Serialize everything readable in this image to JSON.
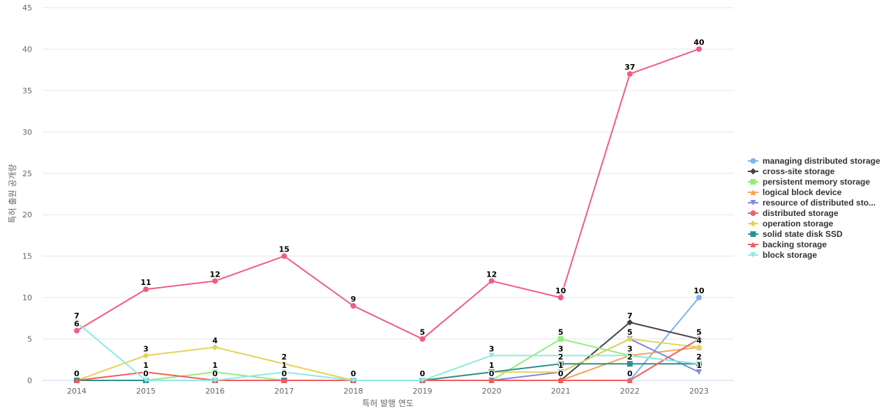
{
  "chart_data": {
    "type": "line",
    "xlabel": "특허 발행 연도",
    "ylabel": "특허 출원 공개량",
    "x": [
      "2014",
      "2015",
      "2016",
      "2017",
      "2018",
      "2019",
      "2020",
      "2021",
      "2022",
      "2023"
    ],
    "ylim": [
      0,
      45
    ],
    "yticks": [
      "0",
      "5",
      "10",
      "15",
      "20",
      "25",
      "30",
      "35",
      "40",
      "45"
    ],
    "grid": true,
    "legend_position": "right",
    "series": [
      {
        "name": "managing distributed storage",
        "display_name": "managing distributed storage",
        "color": "#7cb5ec",
        "marker": "circle",
        "points": [
          [
            2022,
            0
          ],
          [
            2023,
            10
          ]
        ]
      },
      {
        "name": "cross-site storage",
        "display_name": "cross-site storage",
        "color": "#434348",
        "marker": "diamond",
        "points": [
          [
            2021,
            0
          ],
          [
            2022,
            7
          ],
          [
            2023,
            5
          ]
        ]
      },
      {
        "name": "persistent memory storage",
        "display_name": "persistent memory storage",
        "color": "#90ed7d",
        "marker": "square",
        "points": [
          [
            2015,
            0
          ],
          [
            2016,
            1
          ],
          [
            2017,
            0
          ],
          [
            2020,
            0
          ],
          [
            2021,
            5
          ],
          [
            2022,
            3
          ],
          [
            2023,
            2
          ]
        ]
      },
      {
        "name": "logical block device",
        "display_name": "logical block device",
        "color": "#f7a35c",
        "marker": "triangle",
        "points": [
          [
            2021,
            0
          ],
          [
            2022,
            3
          ],
          [
            2023,
            4
          ]
        ]
      },
      {
        "name": "resource of distributed storage",
        "display_name": "resource of distributed sto...",
        "color": "#8085e9",
        "marker": "triangle-down",
        "points": [
          [
            2020,
            0
          ],
          [
            2021,
            1
          ],
          [
            2022,
            5
          ],
          [
            2023,
            1
          ]
        ]
      },
      {
        "name": "distributed storage",
        "display_name": "distributed storage",
        "color": "#f15c80",
        "marker": "circle",
        "points": [
          [
            2014,
            6
          ],
          [
            2015,
            11
          ],
          [
            2016,
            12
          ],
          [
            2017,
            15
          ],
          [
            2018,
            9
          ],
          [
            2019,
            5
          ],
          [
            2020,
            12
          ],
          [
            2021,
            10
          ],
          [
            2022,
            37
          ],
          [
            2023,
            40
          ]
        ]
      },
      {
        "name": "operation storage",
        "display_name": "operation storage",
        "color": "#e4d354",
        "marker": "diamond",
        "points": [
          [
            2014,
            0
          ],
          [
            2015,
            3
          ],
          [
            2016,
            4
          ],
          [
            2017,
            2
          ],
          [
            2018,
            0
          ],
          [
            2019,
            0
          ],
          [
            2020,
            1
          ],
          [
            2021,
            1
          ],
          [
            2022,
            5
          ],
          [
            2023,
            4
          ]
        ]
      },
      {
        "name": "solid state disk SSD",
        "display_name": "solid state disk SSD",
        "color": "#2b908f",
        "marker": "square",
        "points": [
          [
            2014,
            0
          ],
          [
            2015,
            0
          ],
          [
            2016,
            0
          ],
          [
            2017,
            0
          ],
          [
            2018,
            0
          ],
          [
            2019,
            0
          ],
          [
            2020,
            1
          ],
          [
            2021,
            2
          ],
          [
            2022,
            2
          ],
          [
            2023,
            2
          ]
        ]
      },
      {
        "name": "backing storage",
        "display_name": "backing storage",
        "color": "#f45b5b",
        "marker": "triangle",
        "points": [
          [
            2014,
            0
          ],
          [
            2015,
            1
          ],
          [
            2016,
            0
          ],
          [
            2017,
            0
          ],
          [
            2018,
            0
          ],
          [
            2019,
            0
          ],
          [
            2020,
            0
          ],
          [
            2021,
            0
          ],
          [
            2022,
            0
          ],
          [
            2023,
            5
          ]
        ]
      },
      {
        "name": "block storage",
        "display_name": "block storage",
        "color": "#91e8e1",
        "marker": "triangle-down",
        "points": [
          [
            2014,
            7
          ],
          [
            2015,
            0
          ],
          [
            2016,
            0
          ],
          [
            2017,
            1
          ],
          [
            2018,
            0
          ],
          [
            2019,
            0
          ],
          [
            2020,
            3
          ],
          [
            2021,
            3
          ],
          [
            2022,
            3
          ],
          [
            2023,
            2
          ]
        ]
      }
    ],
    "data_labels": [
      {
        "x": 2014,
        "value": 7,
        "series": "block storage"
      },
      {
        "x": 2014,
        "value": 6,
        "series": "distributed storage"
      },
      {
        "x": 2014,
        "value": 0,
        "series": "operation storage"
      },
      {
        "x": 2015,
        "value": 11,
        "series": "distributed storage"
      },
      {
        "x": 2015,
        "value": 3,
        "series": "operation storage"
      },
      {
        "x": 2015,
        "value": 1,
        "series": "backing storage"
      },
      {
        "x": 2015,
        "value": 0,
        "series": "persistent memory storage"
      },
      {
        "x": 2016,
        "value": 12,
        "series": "distributed storage"
      },
      {
        "x": 2016,
        "value": 4,
        "series": "operation storage"
      },
      {
        "x": 2016,
        "value": 1,
        "series": "persistent memory storage"
      },
      {
        "x": 2016,
        "value": 0,
        "series": "backing storage"
      },
      {
        "x": 2017,
        "value": 15,
        "series": "distributed storage"
      },
      {
        "x": 2017,
        "value": 2,
        "series": "operation storage"
      },
      {
        "x": 2017,
        "value": 1,
        "series": "block storage"
      },
      {
        "x": 2017,
        "value": 0,
        "series": "persistent memory storage"
      },
      {
        "x": 2018,
        "value": 9,
        "series": "distributed storage"
      },
      {
        "x": 2018,
        "value": 0,
        "series": "operation storage"
      },
      {
        "x": 2019,
        "value": 5,
        "series": "distributed storage"
      },
      {
        "x": 2019,
        "value": 0,
        "series": "operation storage"
      },
      {
        "x": 2020,
        "value": 12,
        "series": "distributed storage"
      },
      {
        "x": 2020,
        "value": 3,
        "series": "block storage"
      },
      {
        "x": 2020,
        "value": 1,
        "series": "operation storage"
      },
      {
        "x": 2020,
        "value": 0,
        "series": "persistent memory storage"
      },
      {
        "x": 2021,
        "value": 10,
        "series": "distributed storage"
      },
      {
        "x": 2021,
        "value": 5,
        "series": "persistent memory storage"
      },
      {
        "x": 2021,
        "value": 3,
        "series": "block storage"
      },
      {
        "x": 2021,
        "value": 2,
        "series": "solid state disk SSD"
      },
      {
        "x": 2021,
        "value": 1,
        "series": "operation storage"
      },
      {
        "x": 2021,
        "value": 0,
        "series": "logical block device"
      },
      {
        "x": 2022,
        "value": 37,
        "series": "distributed storage"
      },
      {
        "x": 2022,
        "value": 7,
        "series": "cross-site storage"
      },
      {
        "x": 2022,
        "value": 5,
        "series": "resource of distributed storage"
      },
      {
        "x": 2022,
        "value": 3,
        "series": "logical block device"
      },
      {
        "x": 2022,
        "value": 2,
        "series": "solid state disk SSD"
      },
      {
        "x": 2022,
        "value": 0,
        "series": "backing storage"
      },
      {
        "x": 2023,
        "value": 40,
        "series": "distributed storage"
      },
      {
        "x": 2023,
        "value": 10,
        "series": "managing distributed storage"
      },
      {
        "x": 2023,
        "value": 5,
        "series": "cross-site storage"
      },
      {
        "x": 2023,
        "value": 4,
        "series": "logical block device"
      },
      {
        "x": 2023,
        "value": 2,
        "series": "persistent memory storage"
      },
      {
        "x": 2023,
        "value": 1,
        "series": "resource of distributed storage"
      }
    ]
  }
}
